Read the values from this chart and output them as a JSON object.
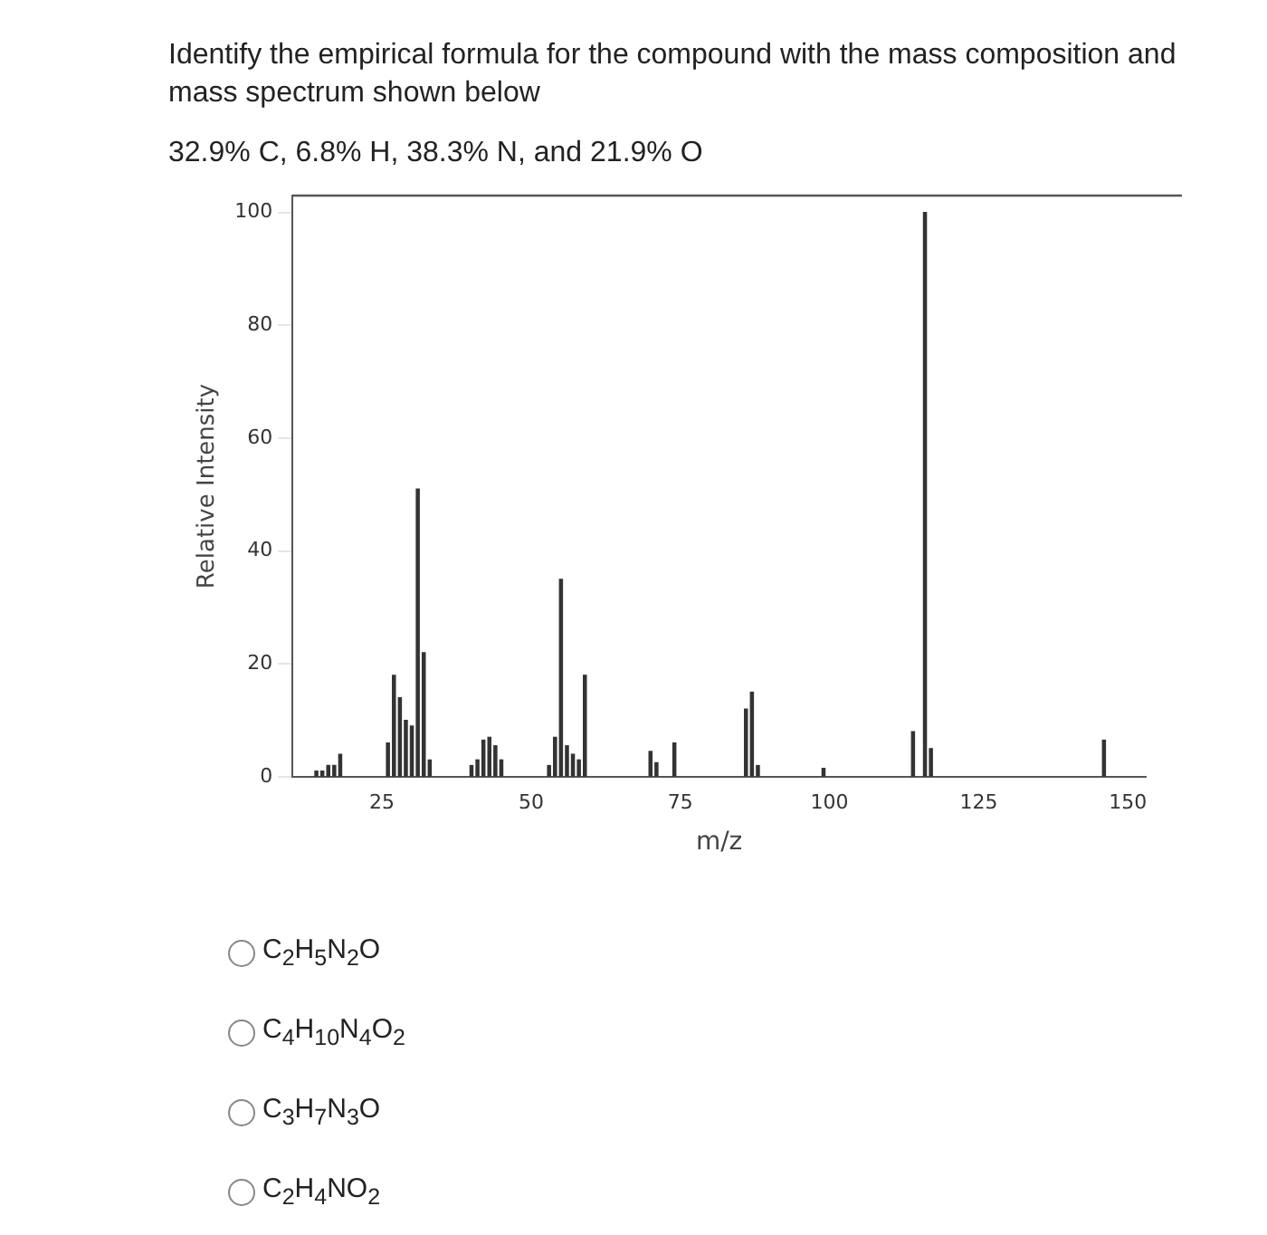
{
  "chart_data": {
    "type": "bar",
    "title": "Identify the empirical formula for the compound with the mass composition and mass spectrum shown below",
    "subtitle": "32.9% C, 6.8% H, 38.3% N, and 21.9% O",
    "xlabel": "m/z",
    "ylabel": "Relative Intensity",
    "x": [
      14,
      15,
      16,
      17,
      18,
      26,
      27,
      28,
      29,
      30,
      31,
      32,
      33,
      40,
      41,
      42,
      43,
      44,
      45,
      53,
      54,
      55,
      56,
      57,
      58,
      59,
      70,
      71,
      74,
      86,
      87,
      88,
      99,
      114,
      116,
      117,
      146
    ],
    "values": [
      1,
      1,
      2,
      2,
      4,
      6,
      18,
      14,
      10,
      9,
      51,
      22,
      3,
      2,
      3,
      6.5,
      7,
      5.5,
      3,
      2,
      7,
      35,
      5.5,
      4,
      3,
      18,
      4.5,
      2.5,
      6,
      12,
      15,
      2,
      1.5,
      8,
      100,
      5,
      6.5
    ],
    "color": "#333333",
    "xlim": [
      10,
      153
    ],
    "xticks": [
      25,
      50,
      75,
      100,
      125,
      150
    ],
    "ylim": [
      0,
      103
    ],
    "yticks": [
      0,
      20,
      40,
      60,
      80,
      100
    ],
    "grid": false,
    "legend": false,
    "annotations": [
      "C$_{2}$H$_{5}$N$_{2}$O",
      "C$_{4}$H$_{10}$N$_{4}$O$_{2}$",
      "C$_{3}$H$_{7}$N$_{3}$O",
      "C$_{2}$H$_{4}$NO$_{2}$"
    ]
  }
}
